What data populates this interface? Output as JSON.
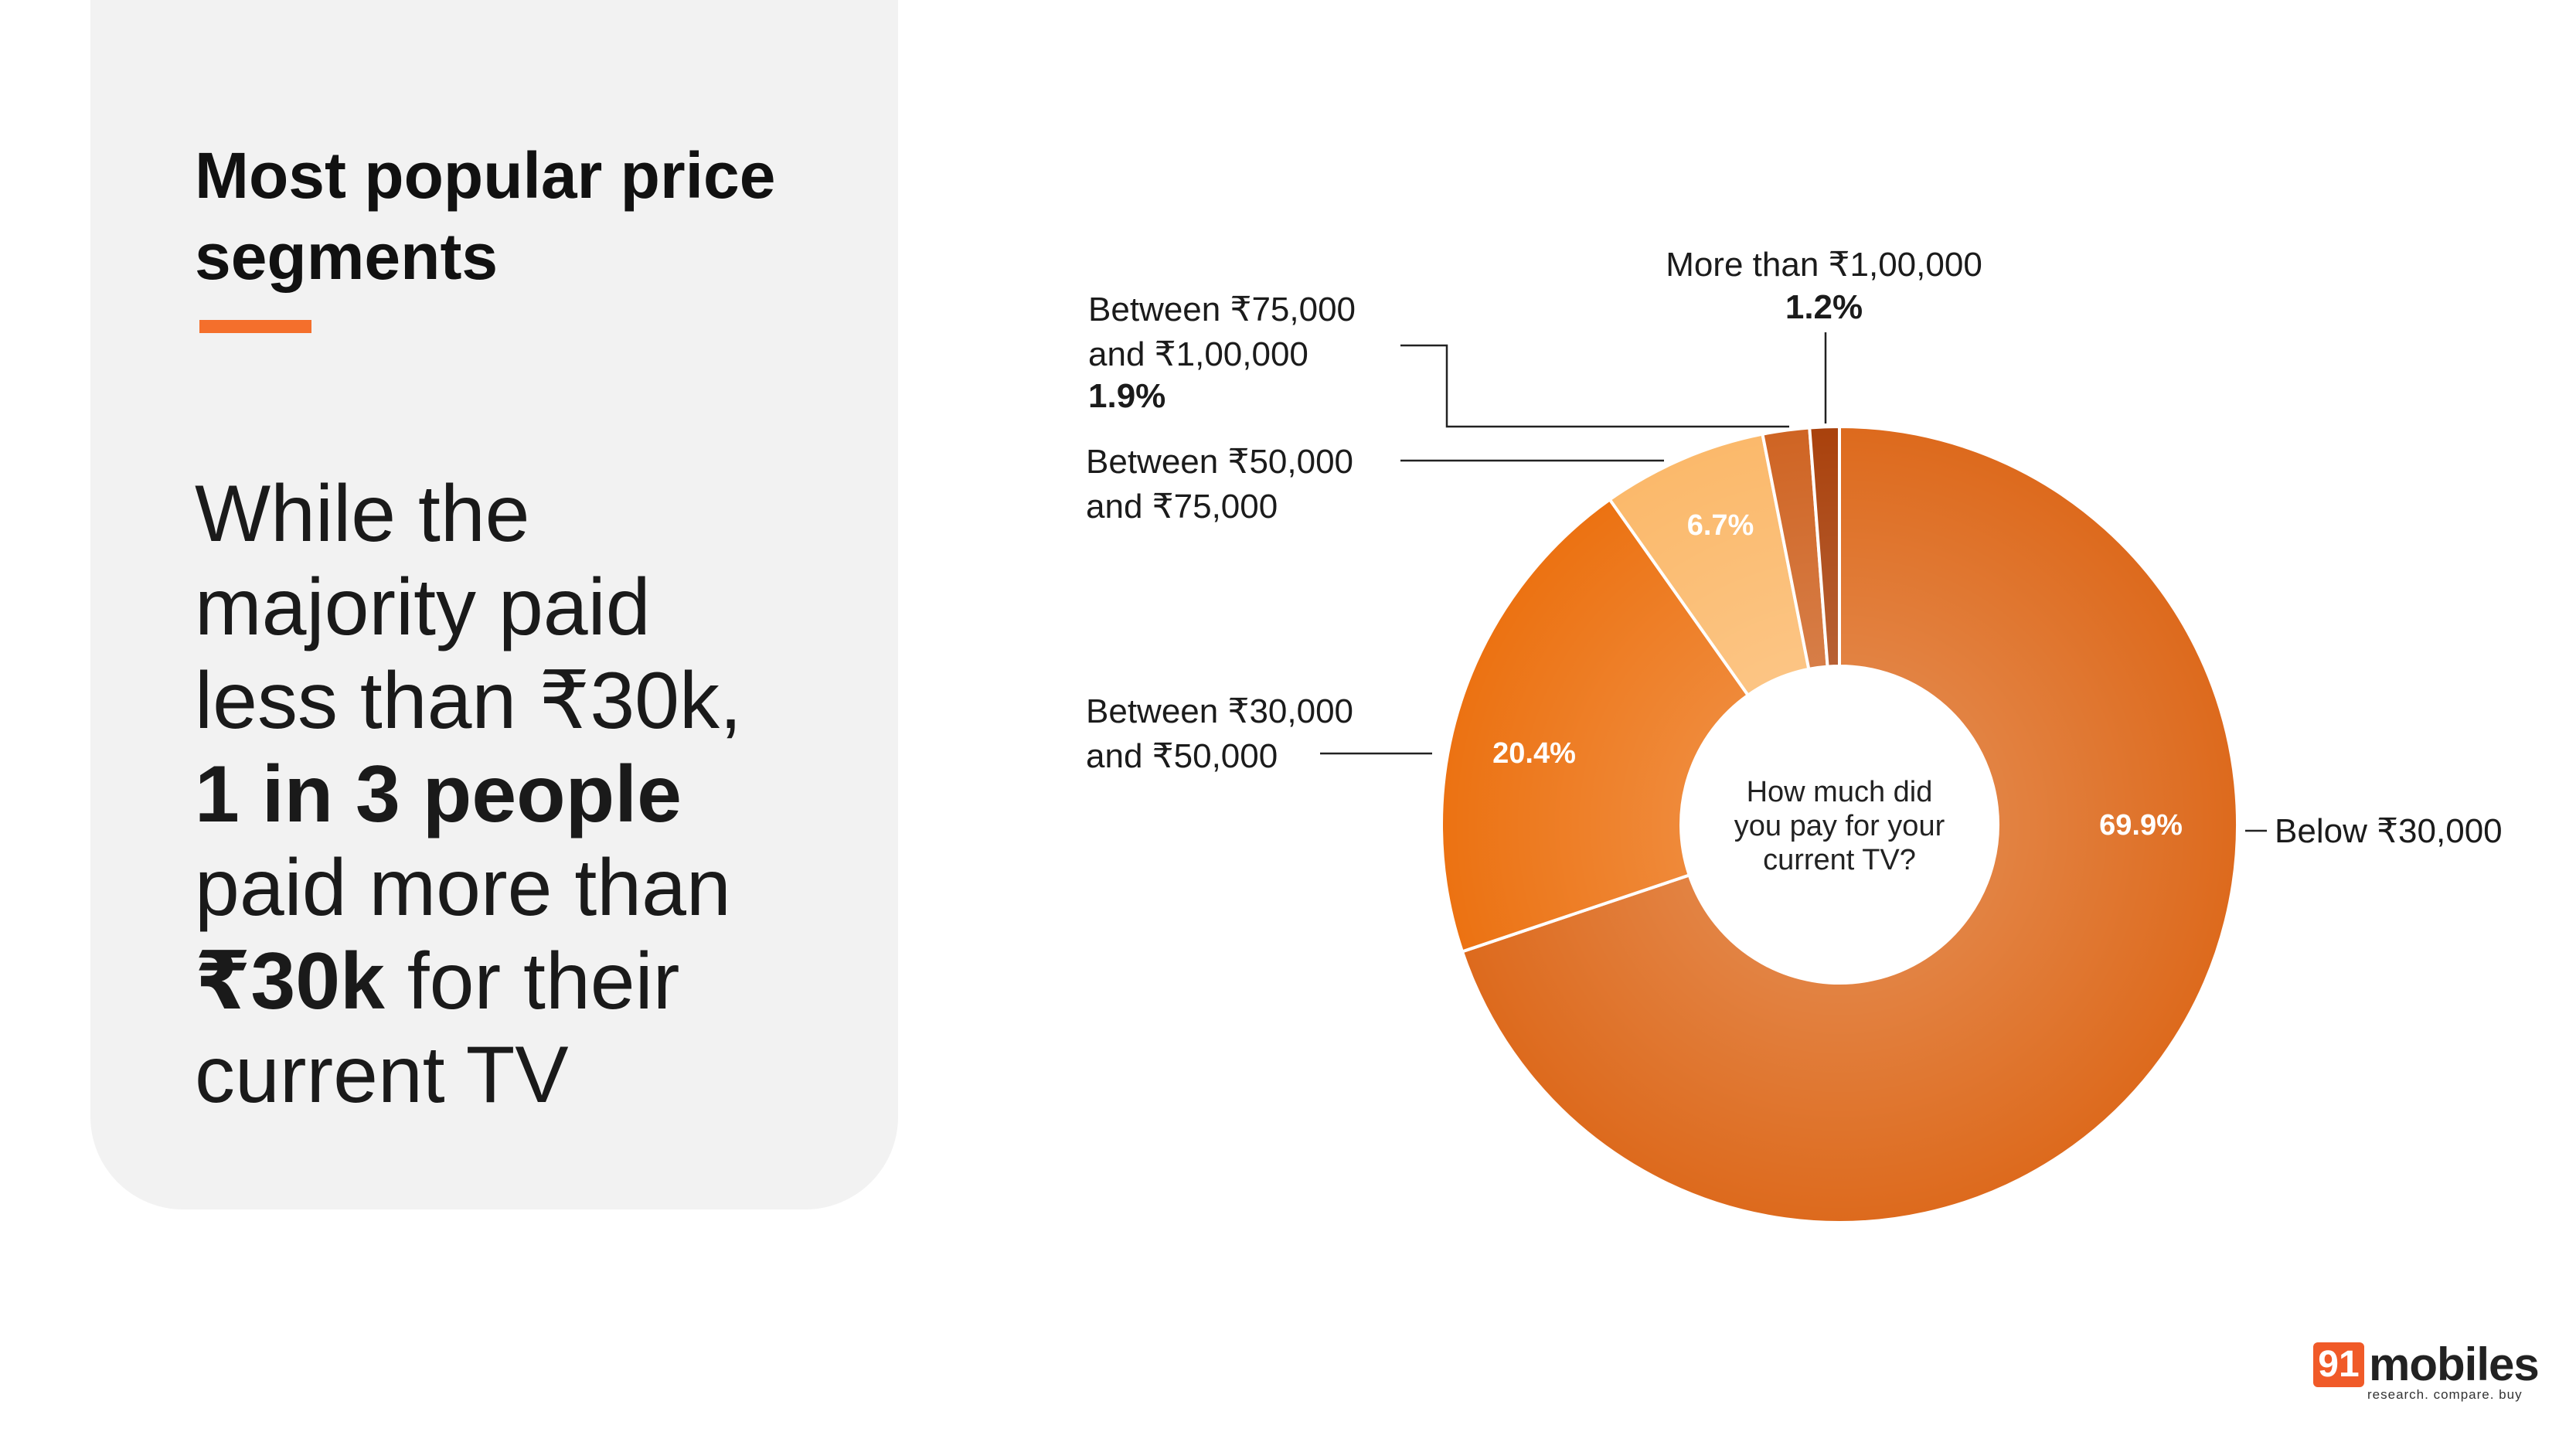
{
  "heading": "Most popular price segments",
  "body": {
    "line1": "While the",
    "line2": "majority paid",
    "line3": "less than ₹30k,",
    "line4_bold": "1 in 3 people",
    "line5": "paid more than",
    "line6_bold": "₹30k",
    "line6_rest": " for their",
    "line7": "current TV"
  },
  "logo": {
    "number": "91",
    "word": "mobiles",
    "tagline": "research. compare. buy"
  },
  "colors": {
    "accent": "#f46f2c",
    "panel": "#f2f2f2"
  },
  "chart_data": {
    "type": "pie",
    "donut": true,
    "center_label": [
      "How much did",
      "you pay for your",
      "current TV?"
    ],
    "slices": [
      {
        "label_lines": [
          "Below ₹30,000"
        ],
        "value": 69.9,
        "value_label": "69.9%",
        "color": "#dd6a1d"
      },
      {
        "label_lines": [
          "Between ₹30,000",
          "and ₹50,000"
        ],
        "value": 20.4,
        "value_label": "20.4%",
        "color": "#ec7212"
      },
      {
        "label_lines": [
          "Between ₹50,000",
          "and ₹75,000"
        ],
        "value": 6.7,
        "value_label": "6.7%",
        "color": "#fbb96b"
      },
      {
        "label_lines": [
          "Between ₹75,000",
          "and ₹1,00,000"
        ],
        "value": 1.9,
        "value_label": "1.9%",
        "color": "#cf6423"
      },
      {
        "label_lines": [
          "More than ₹1,00,000"
        ],
        "value": 1.2,
        "value_label": "1.2%",
        "color": "#a9410c"
      }
    ]
  }
}
